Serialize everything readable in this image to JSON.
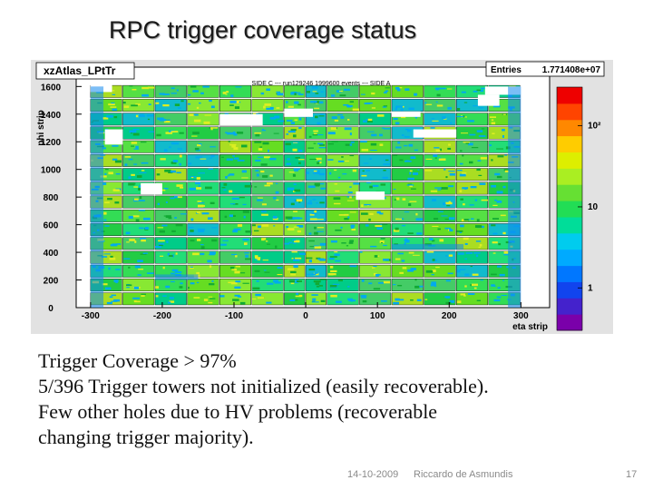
{
  "slide": {
    "title": "RPC trigger coverage status",
    "body_lines": [
      "Trigger Coverage  > 97%",
      "5/396 Trigger towers not initialized (easily recoverable).",
      "Few other holes due to HV problems (recoverable",
      "changing trigger majority)."
    ],
    "footer": {
      "date": "14-10-2009",
      "author": "Riccardo de Asmundis",
      "page": "17"
    }
  },
  "chart_data": {
    "type": "heatmap",
    "histogram_name": "xzAtlas_LPtTr",
    "subtitle": "SIDE C ---  run129246 1999600 events  ---  SIDE A",
    "stats": {
      "label": "Entries",
      "value": "1.771408e+07"
    },
    "xlabel": "eta strip",
    "ylabel": "phi strip",
    "xlim": [
      -320,
      340
    ],
    "ylim": [
      0,
      1740
    ],
    "x_ticks": [
      -300,
      -200,
      -100,
      0,
      100,
      200,
      300
    ],
    "x_tick_labels": [
      "-300",
      "-200",
      "-100",
      "0",
      "100",
      "200",
      "300"
    ],
    "y_ticks": [
      0,
      200,
      400,
      600,
      800,
      1000,
      1200,
      1400,
      1600
    ],
    "y_tick_labels": [
      "0",
      "200",
      "400",
      "600",
      "800",
      "1000",
      "1200",
      "1400",
      "1600"
    ],
    "z_scale": "log",
    "z_ticks": [
      1,
      10,
      100
    ],
    "z_tick_labels": [
      "1",
      "10",
      "10²"
    ],
    "palette": [
      "#7a00aa",
      "#4422cc",
      "#1144ee",
      "#0077ff",
      "#00aaff",
      "#00ccee",
      "#00dd99",
      "#22dd55",
      "#66e033",
      "#aaee22",
      "#ddee00",
      "#ffcc00",
      "#ff8800",
      "#ff4400",
      "#ee0000"
    ],
    "grid": false,
    "summary": {
      "trigger_coverage": "> 97%",
      "towers_not_initialized": "5/396"
    }
  }
}
